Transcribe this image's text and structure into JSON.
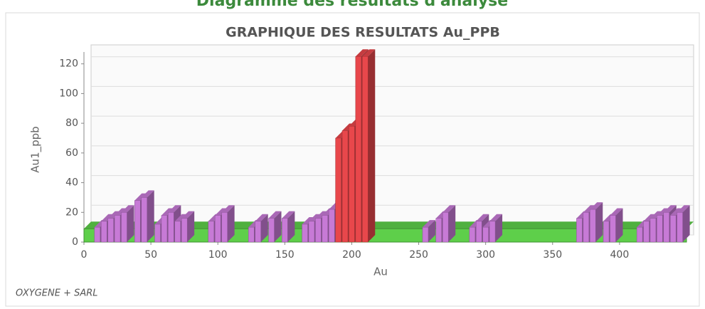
{
  "page_title": "Diagramme des résultats d'analyse",
  "chart_data": {
    "type": "bar3d",
    "title": "GRAPHIQUE DES RESULTATS Au_PPB",
    "x_label": "Au",
    "y_label": "Au1_ppb",
    "footer": "OXYGENE + SARL",
    "xlim": [
      0,
      450
    ],
    "ylim": [
      0,
      128
    ],
    "xticks": [
      0,
      50,
      100,
      150,
      200,
      250,
      300,
      350,
      400
    ],
    "yticks": [
      0,
      20,
      40,
      60,
      80,
      100,
      120
    ],
    "grid": true,
    "series": [
      {
        "color": "#5ecf4a",
        "kind": "area",
        "x": [
          0,
          50,
          100,
          150,
          200,
          250,
          300,
          350,
          400,
          450
        ],
        "values": [
          9,
          9,
          9,
          9,
          9,
          9,
          9,
          9,
          9,
          9
        ]
      },
      {
        "color": "#c77ad6",
        "kind": "bar",
        "x": [
          10,
          15,
          20,
          25,
          30,
          40,
          45,
          55,
          60,
          65,
          70,
          75,
          95,
          100,
          105,
          125,
          130,
          140,
          150,
          165,
          170,
          175,
          180,
          185,
          190,
          255,
          265,
          270,
          290,
          295,
          300,
          305,
          370,
          375,
          380,
          390,
          395,
          415,
          420,
          425,
          430,
          435,
          440,
          445
        ],
        "values": [
          10,
          14,
          16,
          18,
          20,
          28,
          30,
          12,
          18,
          20,
          14,
          16,
          14,
          18,
          20,
          10,
          14,
          16,
          16,
          12,
          14,
          16,
          18,
          22,
          28,
          10,
          16,
          20,
          10,
          14,
          10,
          14,
          16,
          20,
          22,
          14,
          18,
          10,
          14,
          16,
          18,
          20,
          18,
          20
        ]
      },
      {
        "color": "#e8474b",
        "kind": "bar",
        "x": [
          190,
          195,
          200,
          205,
          210
        ],
        "values": [
          70,
          75,
          78,
          125,
          125
        ]
      }
    ]
  }
}
